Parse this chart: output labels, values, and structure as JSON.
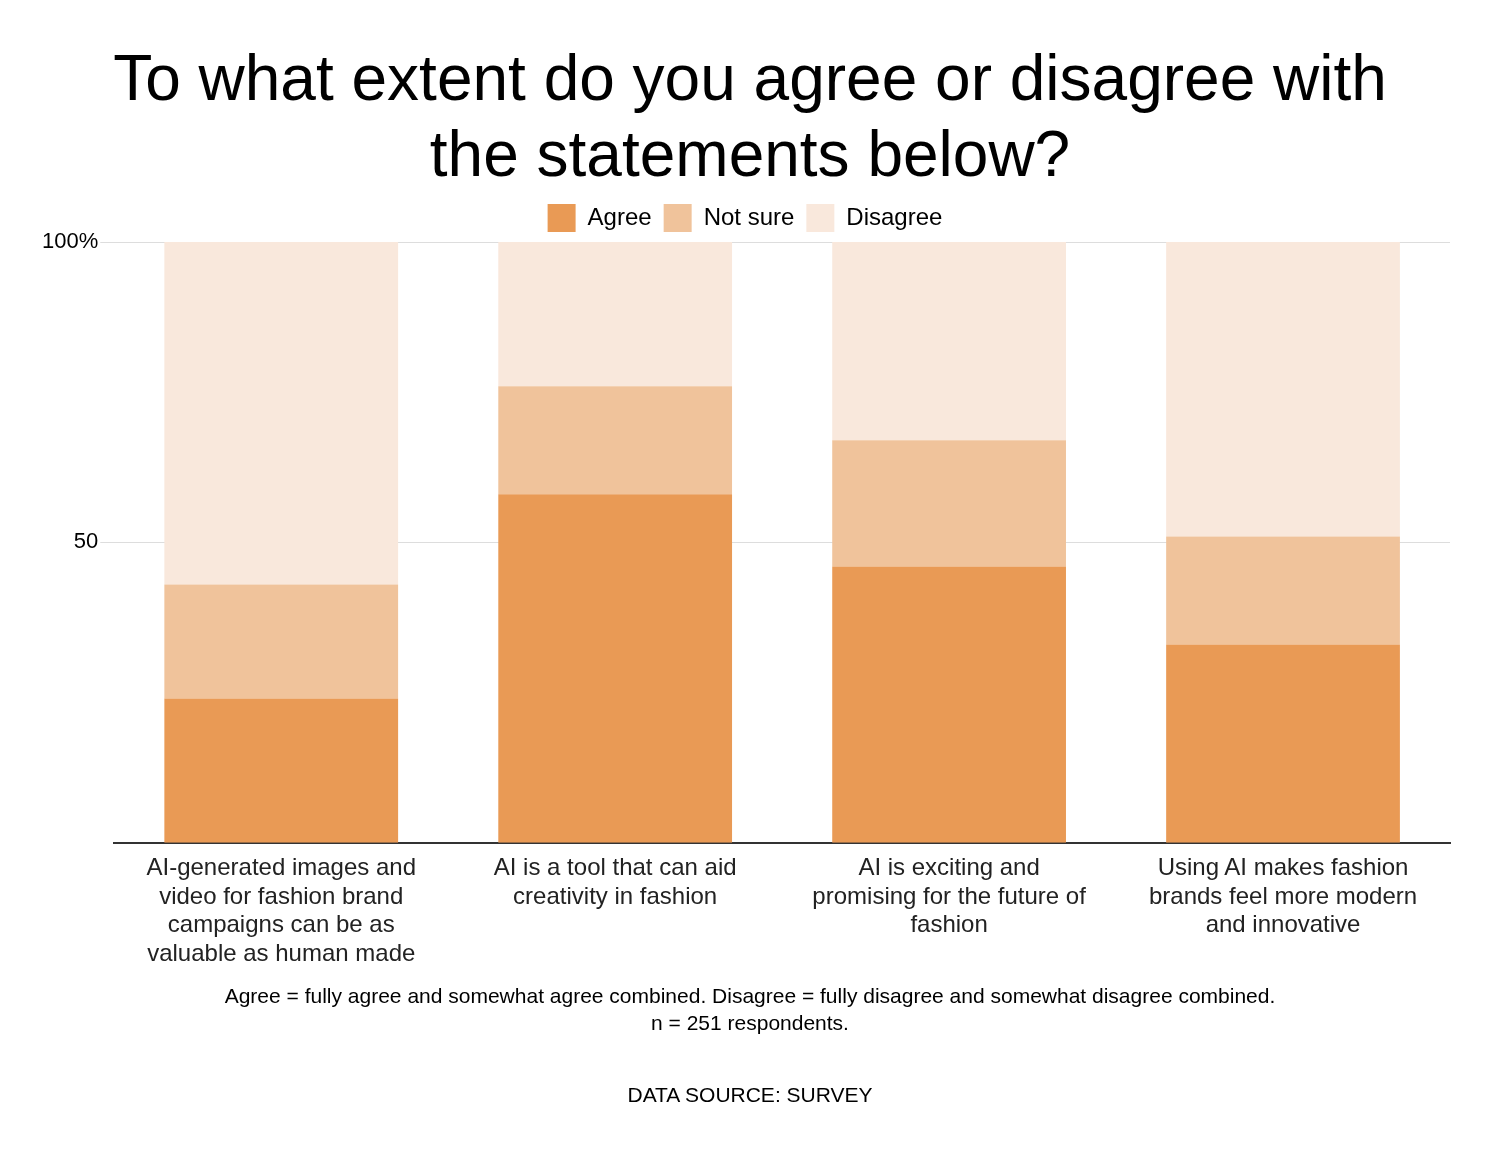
{
  "chart_data": {
    "type": "bar",
    "title": "To what extent do you agree or disagree with the statements below?",
    "categories": [
      "AI-generated images and video for fashion brand campaigns can be as valuable as human made",
      "AI is a tool that can aid creativity in fashion",
      "AI is exciting and promising for the future of fashion",
      "Using AI makes fashion brands feel more modern and innovative"
    ],
    "series": [
      {
        "name": "Agree",
        "color": "#e99a55",
        "values": [
          24,
          58,
          46,
          33
        ]
      },
      {
        "name": "Not sure",
        "color": "#f0c39b",
        "values": [
          19,
          18,
          21,
          18
        ]
      },
      {
        "name": "Disagree",
        "color": "#f9e8dc",
        "values": [
          57,
          24,
          33,
          49
        ]
      }
    ],
    "stacked": true,
    "ylim": [
      0,
      100
    ],
    "yticks": [
      {
        "value": 50,
        "label": "50"
      },
      {
        "value": 100,
        "label": "100%"
      }
    ],
    "grid": "y",
    "legend": "top",
    "annotations": [
      "Agree = fully agree and somewhat agree combined. Disagree = fully disagree and somewhat disagree combined.",
      "n = 251 respondents.",
      "DATA SOURCE: SURVEY"
    ]
  }
}
